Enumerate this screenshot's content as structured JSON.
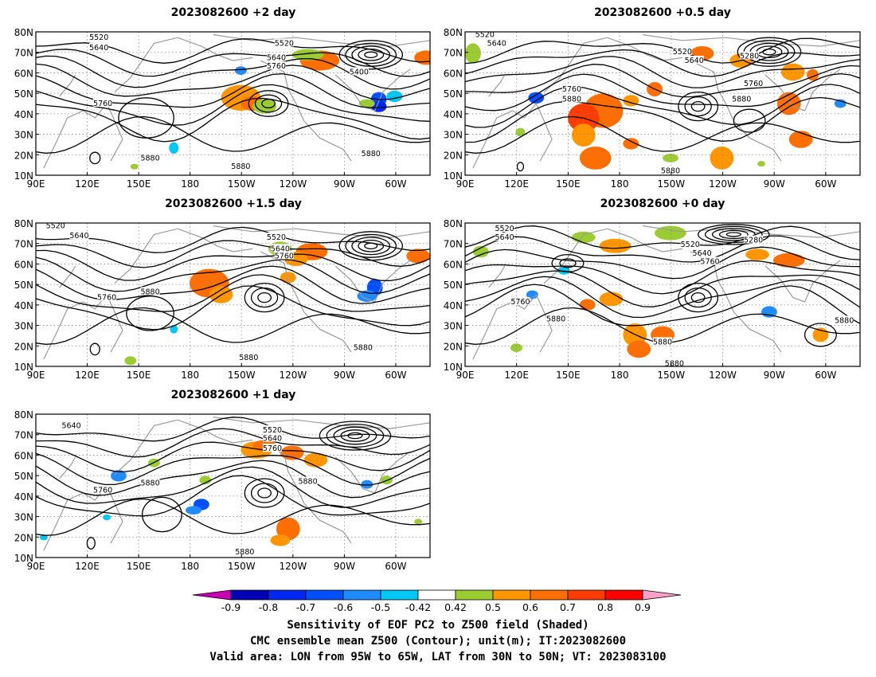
{
  "panels": [
    {
      "id": "p2",
      "title": "2023082600 +2 day"
    },
    {
      "id": "p05",
      "title": "2023082600 +0.5 day"
    },
    {
      "id": "p15",
      "title": "2023082600 +1.5 day"
    },
    {
      "id": "p0",
      "title": "2023082600 +0 day"
    },
    {
      "id": "p1",
      "title": "2023082600 +1 day"
    }
  ],
  "axes": {
    "lat_labels": [
      "80N",
      "70N",
      "60N",
      "50N",
      "40N",
      "30N",
      "20N",
      "10N"
    ],
    "lon_labels": [
      "90E",
      "120E",
      "150E",
      "180",
      "150W",
      "120W",
      "90W",
      "60W"
    ]
  },
  "contour_labels": {
    "p2": [
      "5520",
      "5640",
      "5520",
      "5640",
      "5760",
      "5400",
      "5760",
      "5880",
      "5880",
      "5880"
    ],
    "p05": [
      "5520",
      "5640",
      "5520",
      "5640",
      "5280",
      "5760",
      "5880",
      "5760",
      "5880",
      "5880"
    ],
    "p15": [
      "5520",
      "5640",
      "5520",
      "5640",
      "5760",
      "5760",
      "5880",
      "5880",
      "5880"
    ],
    "p0": [
      "5520",
      "5640",
      "5520",
      "5640",
      "5760",
      "5280",
      "5760",
      "5880",
      "5880",
      "5880",
      "5880"
    ],
    "p1": [
      "5640",
      "5520",
      "5640",
      "5760",
      "5760",
      "5880",
      "5880",
      "5880"
    ]
  },
  "colorbar": {
    "labels": [
      "-0.9",
      "-0.8",
      "-0.7",
      "-0.6",
      "-0.5",
      "-0.42",
      "0.42",
      "0.5",
      "0.6",
      "0.7",
      "0.8",
      "0.9"
    ],
    "colors": [
      "#0000b4",
      "#0028f0",
      "#0050ff",
      "#1e8cff",
      "#00c8f5",
      "#ffffff",
      "#9bcd32",
      "#ff9600",
      "#ff6e00",
      "#ff3c00",
      "#ff0000"
    ],
    "low_color": "#c800b4",
    "high_color": "#ffa0c8"
  },
  "caption": {
    "line1": "Sensitivity of EOF PC2 to Z500 field (Shaded)",
    "line2": "CMC ensemble mean Z500 (Contour); unit(m); IT:2023082600",
    "line3": "Valid area: LON from 95W to 65W, LAT from 30N to 50N; VT: 2023083100"
  }
}
